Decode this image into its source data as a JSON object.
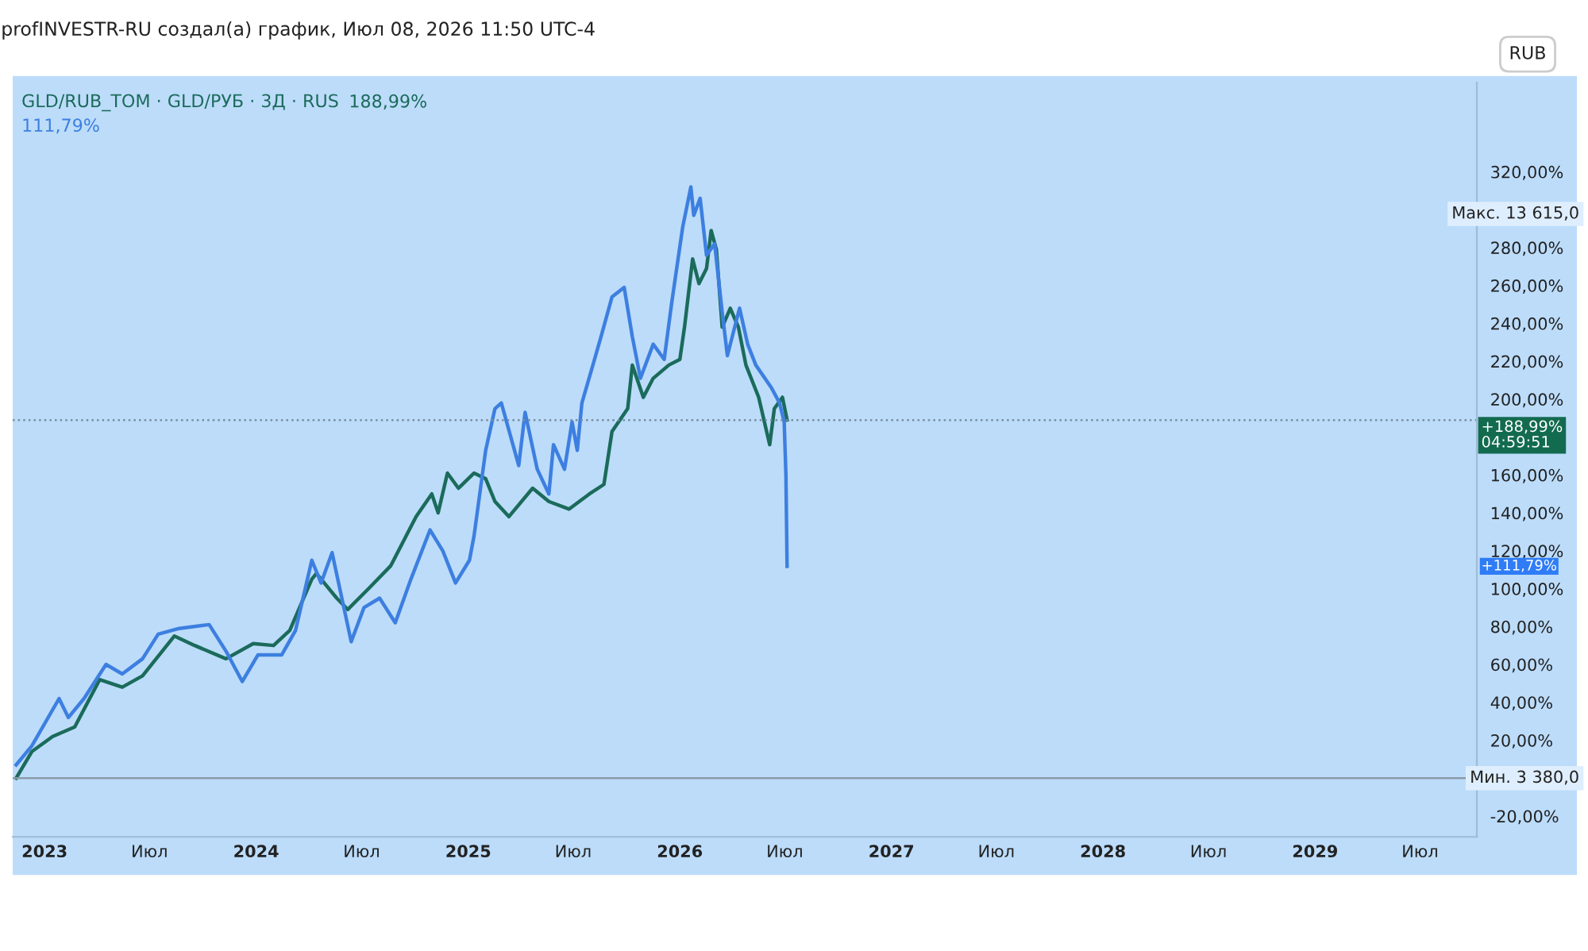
{
  "chart_data": {
    "type": "line",
    "title": "profINVESTR-RU создал(а) график, Июл 08, 2026 11:50 UTC-4",
    "xlim": [
      "2022-11-07",
      "2029-10-07"
    ],
    "xticks": [
      {
        "value": "2023-01-01",
        "label": "2023"
      },
      {
        "value": "2023-07-01",
        "label": "Июл"
      },
      {
        "value": "2024-01-01",
        "label": "2024"
      },
      {
        "value": "2024-07-01",
        "label": "Июл"
      },
      {
        "value": "2025-01-01",
        "label": "2025"
      },
      {
        "value": "2025-07-01",
        "label": "Июл"
      },
      {
        "value": "2026-01-01",
        "label": "2026"
      },
      {
        "value": "2026-07-01",
        "label": "Июл"
      },
      {
        "value": "2027-01-01",
        "label": "2027"
      },
      {
        "value": "2027-07-01",
        "label": "Июл"
      },
      {
        "value": "2028-01-01",
        "label": "2028"
      },
      {
        "value": "2028-07-01",
        "label": "Июл"
      },
      {
        "value": "2029-01-01",
        "label": "2029"
      },
      {
        "value": "2029-07-01",
        "label": "Июл"
      }
    ],
    "ylim": [
      -31,
      367
    ],
    "yticks": [
      {
        "value": -20,
        "label": "-20,00%"
      },
      {
        "value": 20,
        "label": "20,00%"
      },
      {
        "value": 40,
        "label": "40,00%"
      },
      {
        "value": 60,
        "label": "60,00%"
      },
      {
        "value": 80,
        "label": "80,00%"
      },
      {
        "value": 100,
        "label": "100,00%"
      },
      {
        "value": 120,
        "label": "120,00%"
      },
      {
        "value": 140,
        "label": "140,00%"
      },
      {
        "value": 160,
        "label": "160,00%"
      },
      {
        "value": 200,
        "label": "200,00%"
      },
      {
        "value": 220,
        "label": "220,00%"
      },
      {
        "value": 240,
        "label": "240,00%"
      },
      {
        "value": 260,
        "label": "260,00%"
      },
      {
        "value": 280,
        "label": "280,00%"
      },
      {
        "value": 320,
        "label": "320,00%"
      }
    ],
    "grid": false,
    "legend": "top left",
    "marker": "none",
    "line_style": "solid",
    "series": [
      {
        "name": "GLD/RUB_TOM · GLD/РУБ · 3Д · RUS",
        "color": "#1b6b5b",
        "x": [
          "2022-11-13",
          "2022-12-10",
          "2023-01-15",
          "2023-02-22",
          "2023-04-06",
          "2023-05-15",
          "2023-06-19",
          "2023-08-13",
          "2023-09-17",
          "2023-11-10",
          "2023-12-27",
          "2024-01-31",
          "2024-02-28",
          "2024-04-06",
          "2024-04-14",
          "2024-05-19",
          "2024-06-07",
          "2024-07-13",
          "2024-08-20",
          "2024-10-03",
          "2024-10-30",
          "2024-11-10",
          "2024-11-26",
          "2024-12-15",
          "2025-01-11",
          "2025-01-31",
          "2025-02-16",
          "2025-03-12",
          "2025-04-22",
          "2025-05-20",
          "2025-06-24",
          "2025-07-29",
          "2025-08-23",
          "2025-09-06",
          "2025-10-03",
          "2025-10-11",
          "2025-10-30",
          "2025-11-16",
          "2025-12-13",
          "2026-01-01",
          "2026-01-09",
          "2026-01-23",
          "2026-02-03",
          "2026-02-16",
          "2026-02-24",
          "2026-03-05",
          "2026-03-15",
          "2026-03-29",
          "2026-04-12",
          "2026-04-25",
          "2026-05-17",
          "2026-06-05",
          "2026-06-13",
          "2026-06-27",
          "2026-07-05"
        ],
        "values": [
          0,
          14,
          22,
          27,
          52,
          48,
          54,
          75,
          70,
          63,
          71,
          70,
          78,
          105,
          108,
          95,
          89,
          100,
          112,
          138,
          150,
          140,
          161,
          153,
          161,
          158,
          146,
          138,
          153,
          146,
          142,
          150,
          155,
          183,
          195,
          218,
          201,
          211,
          218,
          221,
          238,
          274,
          261,
          269,
          289,
          279,
          238,
          248,
          238,
          218,
          201,
          176,
          195,
          201,
          188.99
        ]
      },
      {
        "color": "#3d7fe0",
        "x": [
          "2022-11-13",
          "2022-12-10",
          "2023-01-26",
          "2023-02-11",
          "2023-03-10",
          "2023-04-17",
          "2023-05-15",
          "2023-06-19",
          "2023-07-16",
          "2023-08-21",
          "2023-10-12",
          "2023-11-10",
          "2023-12-08",
          "2024-01-04",
          "2024-02-14",
          "2024-03-09",
          "2024-04-06",
          "2024-04-22",
          "2024-05-11",
          "2024-06-13",
          "2024-07-05",
          "2024-08-01",
          "2024-08-28",
          "2024-09-24",
          "2024-10-27",
          "2024-11-18",
          "2024-12-10",
          "2025-01-03",
          "2025-01-11",
          "2025-01-31",
          "2025-02-16",
          "2025-02-27",
          "2025-03-29",
          "2025-04-09",
          "2025-04-30",
          "2025-05-20",
          "2025-05-28",
          "2025-06-16",
          "2025-06-29",
          "2025-07-08",
          "2025-07-16",
          "2025-08-04",
          "2025-08-18",
          "2025-09-06",
          "2025-09-27",
          "2025-10-11",
          "2025-10-25",
          "2025-11-16",
          "2025-12-05",
          "2025-12-18",
          "2026-01-06",
          "2026-01-20",
          "2026-01-25",
          "2026-02-05",
          "2026-02-16",
          "2026-03-02",
          "2026-03-15",
          "2026-03-24",
          "2026-04-14",
          "2026-04-28",
          "2026-05-12",
          "2026-06-08",
          "2026-06-22",
          "2026-06-30",
          "2026-07-03",
          "2026-07-05"
        ],
        "values": [
          7,
          17,
          42,
          32,
          42,
          60,
          55,
          63,
          76,
          79,
          81,
          67,
          51,
          65,
          65,
          78,
          115,
          103,
          119,
          72,
          90,
          95,
          82,
          105,
          131,
          120,
          103,
          115,
          128,
          173,
          195,
          198,
          165,
          193,
          163,
          150,
          176,
          163,
          188,
          173,
          198,
          218,
          233,
          254,
          259,
          233,
          211,
          229,
          221,
          251,
          291,
          312,
          297,
          306,
          276,
          282,
          246,
          223,
          248,
          229,
          218,
          206,
          198,
          188,
          160,
          111.79
        ]
      }
    ],
    "ref_lines": [
      {
        "axis": "y",
        "value": 188.99,
        "color": "#7a8fa0",
        "line_style": "dotted"
      },
      {
        "axis": "y",
        "value": 0,
        "label": "Мин. 3 380,0",
        "color": "#8a9aa8",
        "line_style": "solid"
      }
    ],
    "annotations": [
      "188,99%",
      "111,79%",
      "+188,99%",
      "04:59:51",
      "+111,79%",
      "Макс. 13 615,0",
      "RUB"
    ]
  }
}
